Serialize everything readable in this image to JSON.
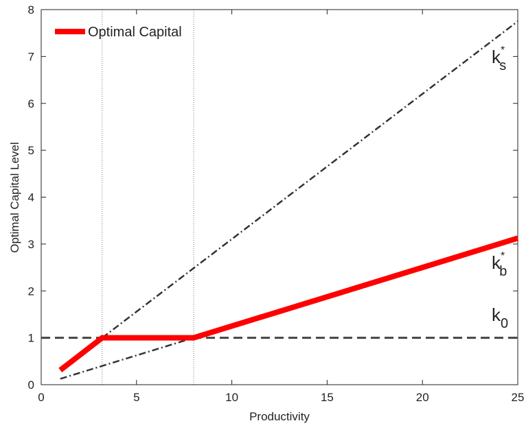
{
  "chart_data": {
    "type": "line",
    "xlabel": "Productivity",
    "ylabel": "Optimal Capital Level",
    "xlim": [
      0,
      25
    ],
    "xticks": [
      0,
      5,
      10,
      15,
      20,
      25
    ],
    "ylim": [
      0,
      8
    ],
    "yticks": [
      0,
      1,
      2,
      3,
      4,
      5,
      6,
      7,
      8
    ],
    "grid": false,
    "legend": "upper left",
    "series": [
      {
        "name": "Optimal Capital",
        "color": "#ff0000",
        "style": "solid",
        "x": [
          1,
          3.2,
          8,
          25
        ],
        "values": [
          0.31,
          1,
          1,
          3.125
        ]
      },
      {
        "color": "#333333",
        "style": "dashdot",
        "x": [
          3.2,
          25
        ],
        "values": [
          1,
          7.75
        ]
      },
      {
        "color": "#333333",
        "style": "dashdot",
        "x": [
          1,
          8
        ],
        "values": [
          0.125,
          1
        ]
      },
      {
        "color": "#444444",
        "style": "dashed",
        "x": [
          0,
          25
        ],
        "values": [
          1,
          1
        ]
      }
    ],
    "vlines": [
      3.2,
      8
    ],
    "annotations": [
      {
        "base": "k",
        "sub": "s",
        "sup": "*"
      },
      {
        "base": "k",
        "sub": "b",
        "sup": "*"
      },
      {
        "base": "k",
        "sub": "0"
      }
    ]
  }
}
